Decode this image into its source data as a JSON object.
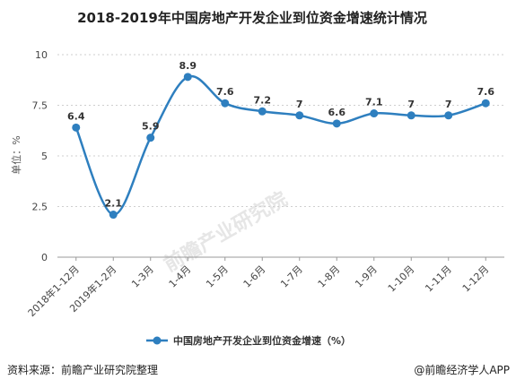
{
  "chart_data": {
    "type": "line",
    "title": "2018-2019年中国房地产开发企业到位资金增速统计情况",
    "ylabel": "单位：%",
    "xlabel": "",
    "categories": [
      "2018年1-12月",
      "2019年1-2月",
      "1-3月",
      "1-4月",
      "1-5月",
      "1-6月",
      "1-7月",
      "1-8月",
      "1-9月",
      "1-10月",
      "1-11月",
      "1-12月"
    ],
    "series": [
      {
        "name": "中国房地产开发企业到位资金增速（%）",
        "values": [
          6.4,
          2.1,
          5.9,
          8.9,
          7.6,
          7.2,
          7,
          6.6,
          7.1,
          7,
          7,
          7.6
        ],
        "color": "#2e7fbf"
      }
    ],
    "y_ticks": [
      0,
      2.5,
      5,
      7.5,
      10
    ],
    "ylim": [
      0,
      10
    ],
    "grid": "horizontal dotted",
    "legend_position": "bottom"
  },
  "watermark": "前瞻产业研究院",
  "footer": {
    "source": "资料来源：前瞻产业研究院整理",
    "credit": "@前瞻经济学人APP"
  }
}
